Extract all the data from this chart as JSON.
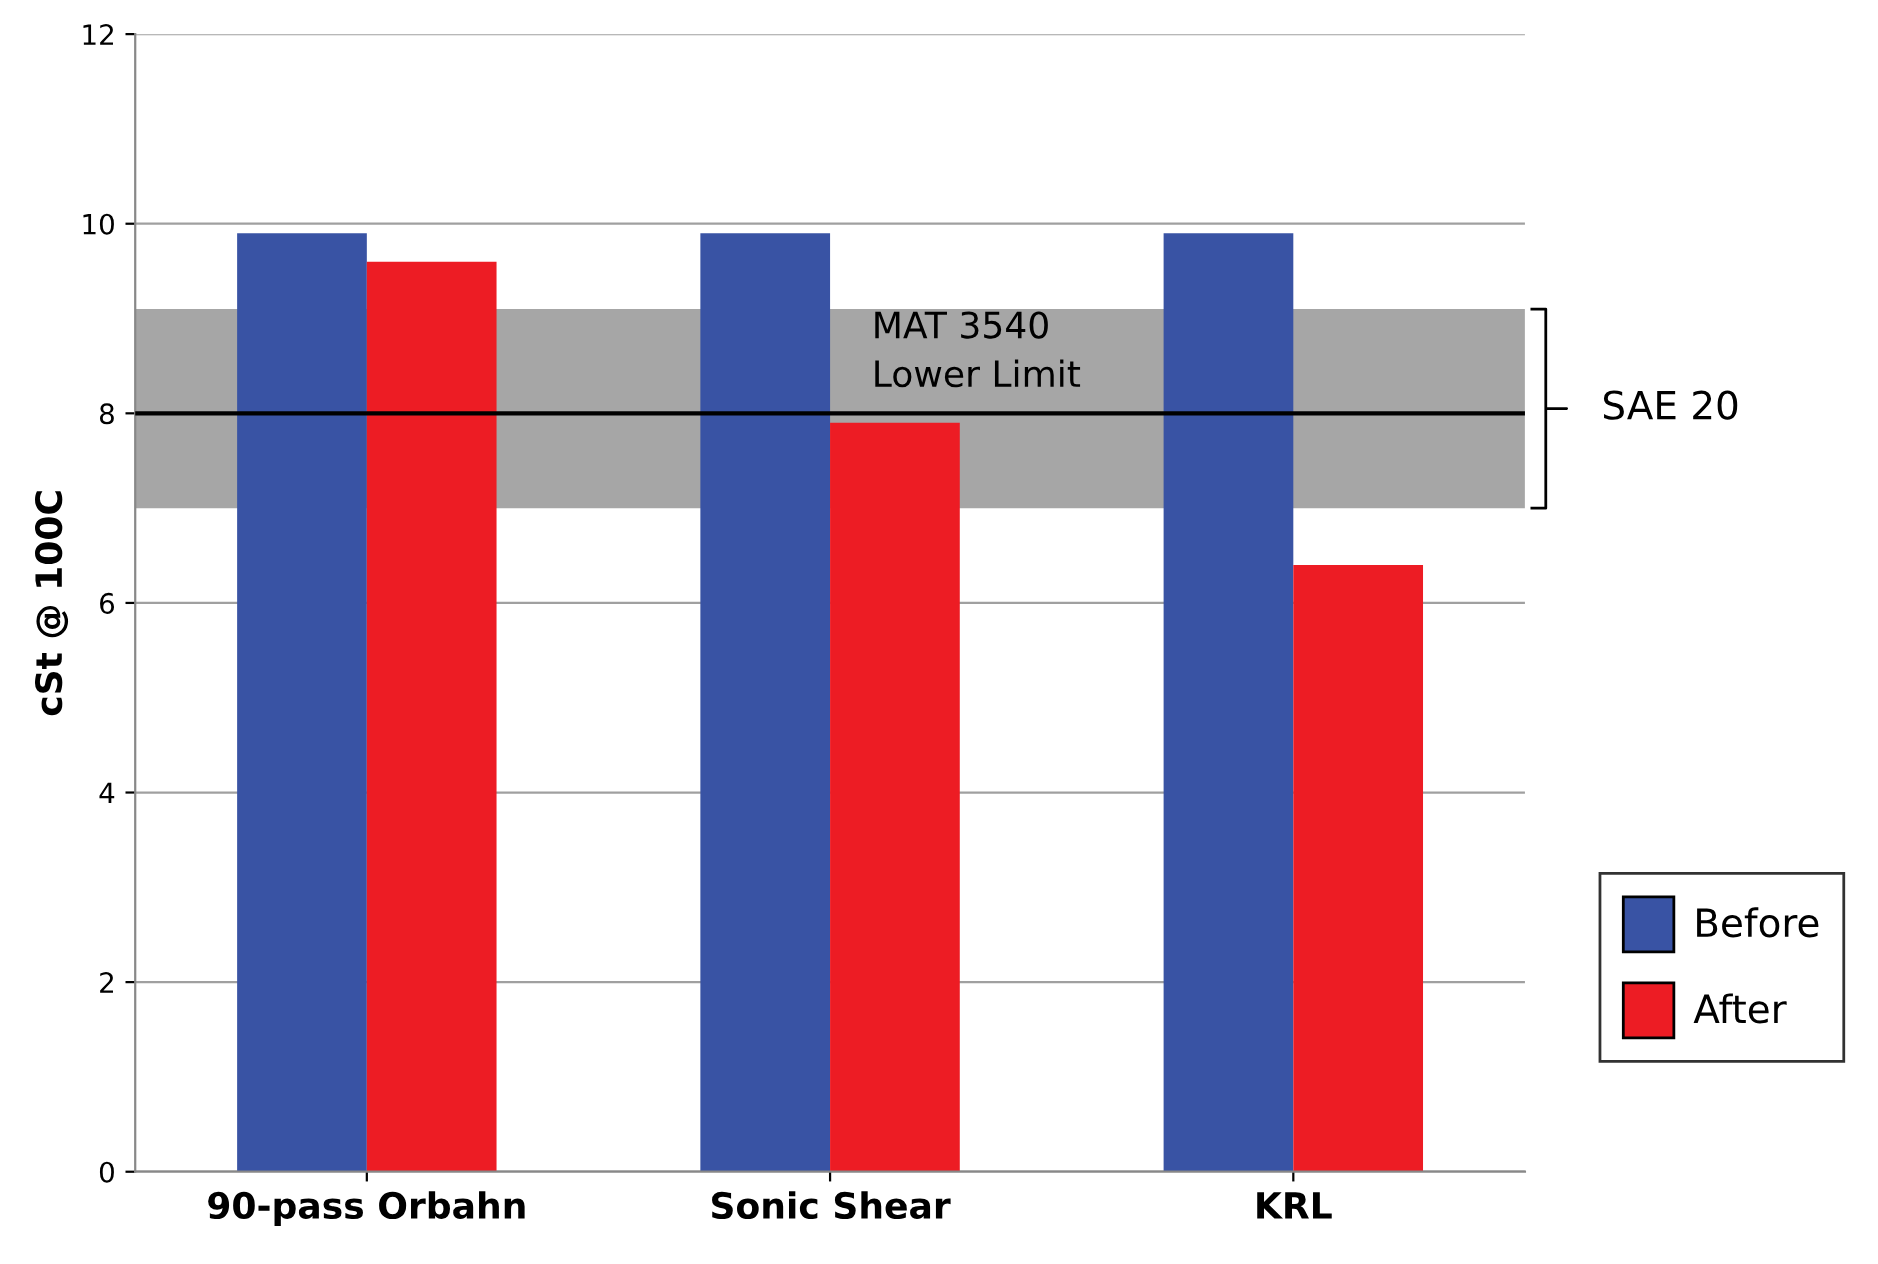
{
  "chart_data": {
    "type": "bar",
    "ylabel": "cSt @ 100C",
    "categories": [
      "90-pass Orbahn",
      "Sonic Shear",
      "KRL"
    ],
    "series": [
      {
        "name": "Before",
        "color": "#3953a4",
        "values": [
          9.9,
          9.9,
          9.9
        ]
      },
      {
        "name": "After",
        "color": "#ed1c24",
        "values": [
          9.6,
          7.9,
          6.4
        ]
      }
    ],
    "ylim": [
      0,
      12
    ],
    "yticks": [
      0,
      2,
      4,
      6,
      8,
      10,
      12
    ],
    "grid": "y",
    "legend": "right",
    "ref_lines": [
      {
        "axis": "y",
        "value": 8,
        "label": "MAT 3540\nLower Limit",
        "color": "#000000"
      }
    ],
    "bands": [
      {
        "axis": "y",
        "from": 7,
        "to": 9.1,
        "label": "SAE 20",
        "color": "#a6a6a6"
      }
    ]
  }
}
